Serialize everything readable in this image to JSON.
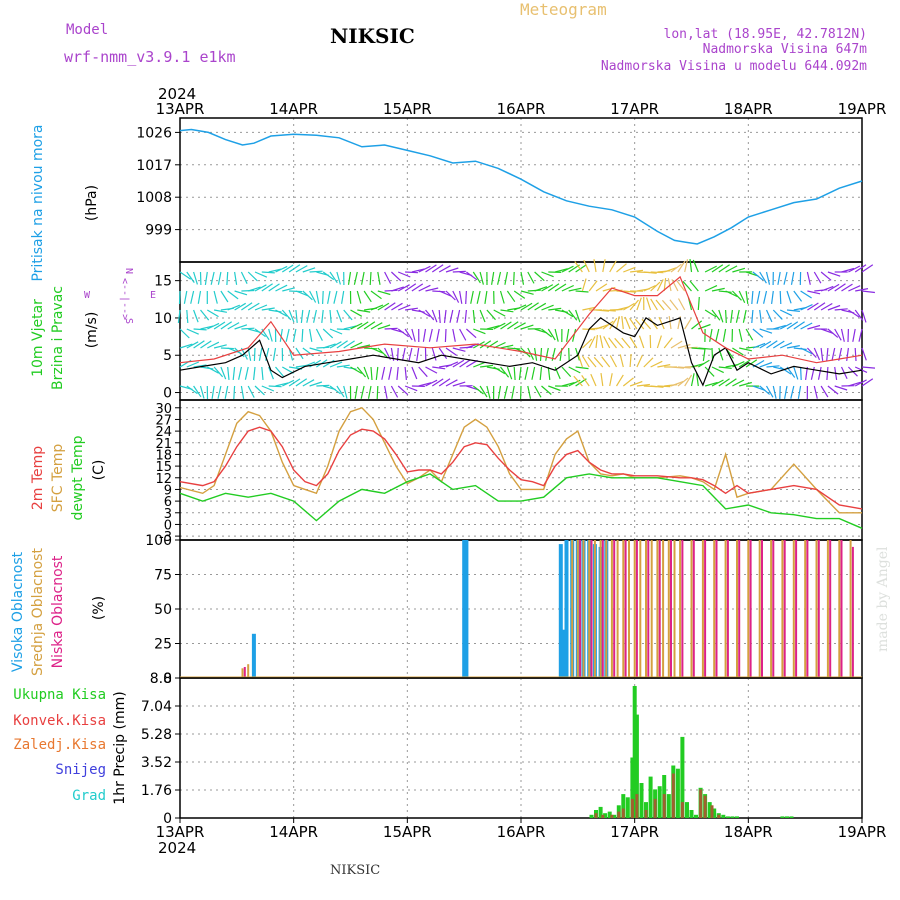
{
  "header": {
    "model_label": "Model",
    "model_name": "wrf-nmm_v3.9.1 e1km",
    "station": "NIKSIC",
    "meteogram": "Meteogram",
    "lonlat": "lon,lat (18.95E, 42.7812N)",
    "altitude": "Nadmorska Visina 647m",
    "model_altitude": "Nadmorska Visina u modelu 644.092m",
    "year": "2024"
  },
  "footer": {
    "station": "NIKSIC",
    "credit": "made by Angel"
  },
  "colors": {
    "pressure": "#1ea0e6",
    "wind_label": "#22cc22",
    "temp2m": "#e84040",
    "sfc": "#d4a040",
    "dewpt": "#22cc22",
    "high_cloud": "#1ea0e6",
    "mid_cloud": "#d4a040",
    "low_cloud": "#dd2288",
    "total_precip": "#22cc22",
    "conv_precip": "#e84040",
    "frozen_precip": "#e87830",
    "snow": "#4040dd",
    "hail": "#22cccc",
    "purple": "#aa44cc"
  },
  "chart_data": [
    {
      "type": "line",
      "name": "pressure",
      "labels": [
        "Pritisak na nivou mora",
        "(hPa)"
      ],
      "yticks": [
        999,
        1008,
        1017,
        1026
      ],
      "ylim": [
        990,
        1030
      ],
      "x_days": [
        "13APR",
        "14APR",
        "15APR",
        "16APR",
        "17APR",
        "18APR",
        "19APR"
      ],
      "series": [
        {
          "name": "Pritisak na nivou mora",
          "x": [
            0,
            0.1,
            0.25,
            0.4,
            0.55,
            0.65,
            0.8,
            1.0,
            1.2,
            1.4,
            1.6,
            1.8,
            2.0,
            2.2,
            2.4,
            2.6,
            2.8,
            3.0,
            3.2,
            3.4,
            3.6,
            3.8,
            4.0,
            4.2,
            4.35,
            4.45,
            4.55,
            4.7,
            4.85,
            5.0,
            5.2,
            5.4,
            5.6,
            5.8,
            6.0
          ],
          "values": [
            1026.5,
            1026.8,
            1026,
            1024,
            1022.5,
            1023,
            1025,
            1025.5,
            1025.2,
            1024.5,
            1022,
            1022.5,
            1021,
            1019.5,
            1017.5,
            1018,
            1016,
            1013,
            1009.5,
            1007,
            1005.5,
            1004.5,
            1002.5,
            998.5,
            996,
            995.5,
            995,
            997,
            999.5,
            1002.5,
            1004.5,
            1006.5,
            1007.5,
            1010.5,
            1012.5
          ]
        }
      ]
    },
    {
      "type": "line",
      "name": "wind",
      "labels": [
        "10m Vjetar",
        "Brzina i Pravac",
        "(m/s)"
      ],
      "compass": [
        "N",
        "<--|-->",
        "S",
        "W",
        "E"
      ],
      "yticks": [
        0,
        5,
        10,
        15
      ],
      "ylim": [
        -1,
        17.5
      ],
      "series": [
        {
          "name": "10m Vjetar",
          "x": [
            0,
            0.2,
            0.4,
            0.55,
            0.7,
            0.8,
            0.9,
            1.1,
            1.3,
            1.5,
            1.7,
            1.9,
            2.1,
            2.3,
            2.5,
            2.7,
            2.9,
            3.1,
            3.3,
            3.5,
            3.6,
            3.7,
            3.9,
            4.0,
            4.1,
            4.2,
            4.3,
            4.4,
            4.5,
            4.6,
            4.7,
            4.8,
            4.9,
            5.0,
            5.2,
            5.4,
            5.6,
            5.8,
            6.0
          ],
          "values": [
            3,
            3.5,
            4,
            5,
            7,
            3,
            2,
            3.5,
            4,
            4.5,
            5,
            4.5,
            4,
            5,
            4.5,
            4,
            3.5,
            4,
            3,
            5,
            8.5,
            10,
            8,
            7.5,
            10,
            9,
            9.5,
            10,
            4,
            1,
            5,
            6,
            3,
            4,
            2.5,
            3.5,
            3,
            2.5,
            3
          ]
        },
        {
          "name": "gust",
          "x": [
            0,
            0.3,
            0.6,
            0.8,
            1.0,
            1.4,
            1.8,
            2.2,
            2.6,
            3.0,
            3.3,
            3.6,
            3.8,
            4.0,
            4.2,
            4.4,
            4.6,
            4.8,
            5.0,
            5.3,
            5.6,
            5.8,
            6.0
          ],
          "values": [
            4,
            4.5,
            6,
            9.5,
            5,
            5.5,
            6.5,
            6,
            6.5,
            5.5,
            4.5,
            10.5,
            14,
            13,
            13,
            15.5,
            8,
            6,
            4.5,
            5,
            4,
            4.5,
            5
          ]
        }
      ]
    },
    {
      "type": "line",
      "name": "temperature",
      "labels": [
        "2m Temp",
        "SFC Temp",
        "dewpt Temp",
        "(C)"
      ],
      "yticks": [
        -3,
        0,
        3,
        6,
        9,
        12,
        15,
        18,
        21,
        24,
        27,
        30
      ],
      "ylim": [
        -4,
        32
      ],
      "series": [
        {
          "name": "2m Temp",
          "x": [
            0,
            0.2,
            0.3,
            0.4,
            0.5,
            0.6,
            0.7,
            0.8,
            0.9,
            1.0,
            1.1,
            1.2,
            1.3,
            1.4,
            1.5,
            1.6,
            1.7,
            1.8,
            1.9,
            2.0,
            2.1,
            2.2,
            2.3,
            2.4,
            2.5,
            2.6,
            2.7,
            2.8,
            2.9,
            3.0,
            3.1,
            3.2,
            3.3,
            3.4,
            3.5,
            3.6,
            3.7,
            3.8,
            3.9,
            4.0,
            4.2,
            4.4,
            4.5,
            4.6,
            4.7,
            4.8,
            4.9,
            5.0,
            5.2,
            5.4,
            5.6,
            5.8,
            6.0
          ],
          "values": [
            11,
            10,
            11,
            15,
            20,
            24,
            25,
            24,
            20,
            14,
            11,
            10,
            13,
            19,
            23,
            24.5,
            24,
            22,
            18,
            13.5,
            14,
            14,
            13,
            16,
            20,
            21,
            20.5,
            17,
            14,
            11.5,
            11,
            10,
            15,
            18,
            19,
            16,
            14,
            13,
            13,
            12.5,
            12.5,
            12,
            12,
            11.5,
            10,
            8,
            10,
            8,
            9,
            10,
            9,
            5,
            4
          ]
        },
        {
          "name": "SFC Temp",
          "x": [
            0,
            0.2,
            0.3,
            0.4,
            0.5,
            0.6,
            0.7,
            0.8,
            0.9,
            1.0,
            1.1,
            1.2,
            1.3,
            1.4,
            1.5,
            1.6,
            1.7,
            1.8,
            1.9,
            2.0,
            2.1,
            2.2,
            2.3,
            2.4,
            2.5,
            2.6,
            2.7,
            2.8,
            2.9,
            3.0,
            3.1,
            3.2,
            3.3,
            3.4,
            3.5,
            3.6,
            3.7,
            3.8,
            3.9,
            4.0,
            4.2,
            4.4,
            4.5,
            4.6,
            4.7,
            4.8,
            4.9,
            5.0,
            5.2,
            5.4,
            5.6,
            5.8,
            6.0
          ],
          "values": [
            9.5,
            8,
            10,
            18,
            26,
            29,
            28,
            24,
            16,
            10,
            9,
            8,
            15,
            24,
            29,
            30,
            27,
            21,
            15,
            10.5,
            12,
            14,
            11,
            18,
            25,
            27,
            25,
            20,
            13,
            9,
            9,
            9,
            18,
            22,
            24,
            16,
            13,
            12.5,
            13,
            12,
            12,
            12.5,
            12,
            11,
            9,
            18,
            7,
            8,
            9,
            15.5,
            9,
            3,
            3
          ]
        },
        {
          "name": "dewpt Temp",
          "x": [
            0,
            0.2,
            0.4,
            0.6,
            0.8,
            1.0,
            1.2,
            1.4,
            1.6,
            1.8,
            2.0,
            2.2,
            2.4,
            2.6,
            2.8,
            3.0,
            3.2,
            3.4,
            3.6,
            3.8,
            4.0,
            4.2,
            4.4,
            4.6,
            4.8,
            5.0,
            5.2,
            5.4,
            5.6,
            5.8,
            6.0
          ],
          "values": [
            8,
            6,
            8,
            7,
            8,
            6,
            1,
            6,
            9,
            8,
            11,
            13,
            9,
            10,
            6,
            6,
            7,
            12,
            13,
            12,
            12,
            12,
            11,
            10,
            4,
            5,
            3,
            2.5,
            1.5,
            1.5,
            -1
          ]
        }
      ]
    },
    {
      "type": "bar",
      "name": "clouds",
      "labels": [
        "Visoka Oblacnost",
        "Srednja Oblacnost",
        "Niska Oblacnost",
        "(%)"
      ],
      "yticks": [
        0,
        25,
        50,
        75,
        100
      ],
      "ylim": [
        0,
        100
      ],
      "series": [
        {
          "name": "Visoka Oblacnost",
          "x": [
            0.65,
            2.5,
            2.52,
            3.35,
            3.37,
            3.4,
            3.45,
            3.5,
            3.55,
            3.6,
            3.65,
            3.7,
            3.75
          ],
          "values": [
            32,
            100,
            100,
            97,
            35,
            100,
            100,
            100,
            100,
            100,
            97,
            95,
            100
          ]
        },
        {
          "name": "Srednja Oblacnost",
          "x": [
            0.55,
            0.6,
            3.45,
            3.5,
            3.55,
            3.6,
            3.65,
            3.7,
            3.75,
            3.8,
            3.85,
            3.9,
            3.95,
            4.0,
            4.05,
            4.1,
            4.15,
            4.2,
            4.25,
            4.3,
            4.35,
            4.4,
            4.5,
            4.6,
            4.7,
            4.8,
            4.9,
            5.0,
            5.1,
            5.2,
            5.3,
            5.4,
            5.5,
            5.6,
            5.7,
            5.8,
            5.9
          ],
          "values": [
            7,
            10,
            100,
            100,
            100,
            100,
            100,
            100,
            100,
            100,
            100,
            100,
            100,
            100,
            100,
            100,
            100,
            100,
            100,
            100,
            100,
            100,
            100,
            100,
            100,
            100,
            100,
            100,
            100,
            100,
            100,
            100,
            100,
            100,
            100,
            100,
            100
          ]
        },
        {
          "name": "Niska Oblacnost",
          "x": [
            0.57,
            3.52,
            3.62,
            3.72,
            3.82,
            3.92,
            4.02,
            4.12,
            4.22,
            4.32,
            4.42,
            4.52,
            4.62,
            4.72,
            4.82,
            4.92,
            5.02,
            5.12,
            5.22,
            5.32,
            5.42,
            5.52,
            5.62,
            5.72,
            5.82,
            5.92
          ],
          "values": [
            8,
            100,
            100,
            100,
            100,
            100,
            100,
            100,
            100,
            100,
            100,
            100,
            100,
            100,
            100,
            100,
            100,
            100,
            100,
            100,
            100,
            100,
            100,
            100,
            100,
            95
          ]
        }
      ]
    },
    {
      "type": "bar",
      "name": "precipitation",
      "labels": [
        "Ukupna Kisa",
        "Konvek.Kisa",
        "Zaledj.Kisa",
        "Snijeg",
        "Grad",
        "1hr Precip (mm)"
      ],
      "yticks": [
        0,
        1.76,
        3.52,
        5.28,
        7.04,
        8.8
      ],
      "ylim": [
        0,
        8.8
      ],
      "series": [
        {
          "name": "Ukupna Kisa",
          "x": [
            3.62,
            3.66,
            3.7,
            3.74,
            3.78,
            3.82,
            3.86,
            3.9,
            3.94,
            3.98,
            4.0,
            4.02,
            4.06,
            4.1,
            4.14,
            4.18,
            4.22,
            4.26,
            4.3,
            4.34,
            4.38,
            4.42,
            4.46,
            4.5,
            4.54,
            4.58,
            4.62,
            4.66,
            4.7,
            4.74,
            4.78,
            4.82,
            4.86,
            4.9,
            5.3,
            5.34,
            5.38
          ],
          "values": [
            0.2,
            0.5,
            0.7,
            0.3,
            0.4,
            0.2,
            0.8,
            1.5,
            1.3,
            3.8,
            8.3,
            6.5,
            2.2,
            1.0,
            2.6,
            1.8,
            2.0,
            2.7,
            1.5,
            3.3,
            3.1,
            5.1,
            1.0,
            0.5,
            0.2,
            1.9,
            1.5,
            1.0,
            0.6,
            0.3,
            0.2,
            0.1,
            0.1,
            0.1,
            0.1,
            0.1,
            0.1
          ]
        },
        {
          "name": "Konvek.Kisa",
          "x": [
            3.66,
            3.72,
            3.8,
            3.86,
            3.9,
            3.98,
            4.02,
            4.1,
            4.18,
            4.26,
            4.34,
            4.42,
            4.58,
            4.62,
            4.68,
            4.74
          ],
          "values": [
            0.3,
            0.2,
            0.2,
            0.4,
            0.6,
            1.2,
            1.5,
            0.5,
            1.2,
            1.5,
            2.8,
            1.0,
            1.8,
            1.4,
            0.8,
            0.2
          ]
        }
      ]
    }
  ]
}
